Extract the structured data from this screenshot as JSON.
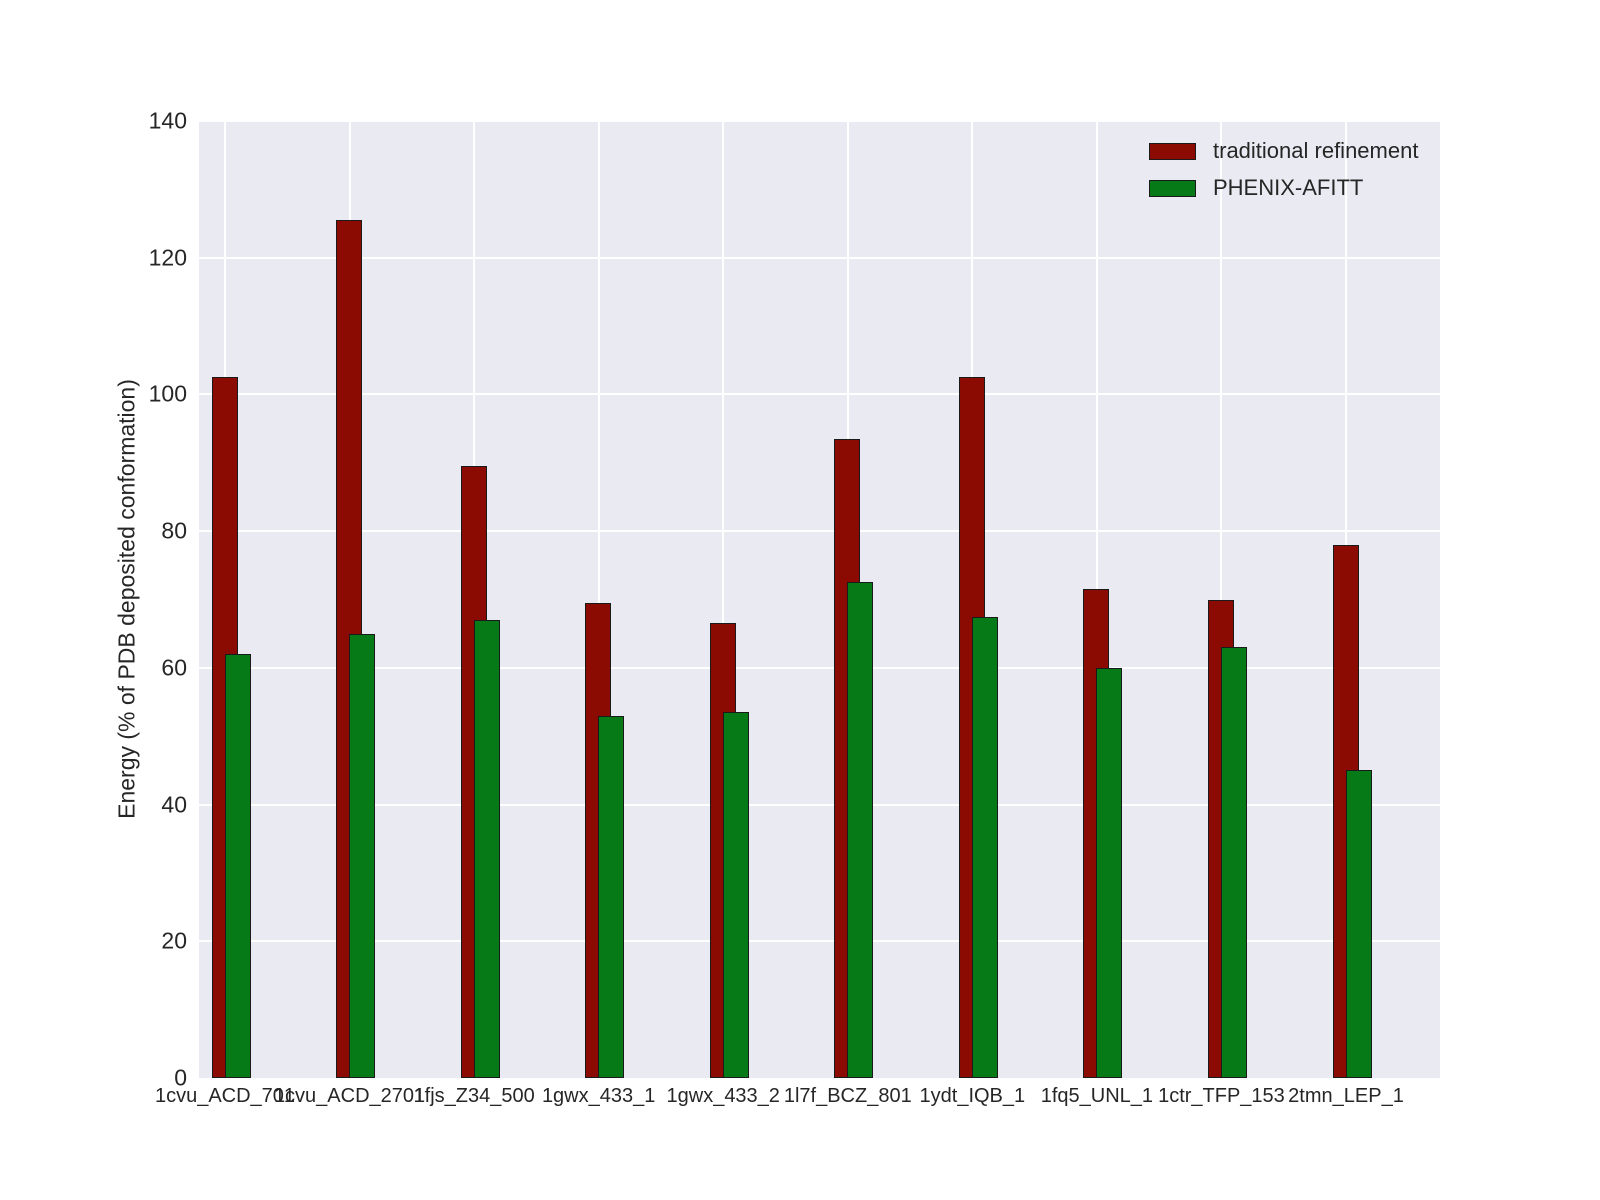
{
  "chart_data": {
    "type": "bar",
    "title": "",
    "xlabel": "",
    "ylabel": "Energy (% of PDB deposited conformation)",
    "ylim": [
      0,
      140
    ],
    "y_ticks": [
      0,
      20,
      40,
      60,
      80,
      100,
      120,
      140
    ],
    "y_tick_labels": [
      "0",
      "20",
      "40",
      "60",
      "80",
      "100",
      "120",
      "140"
    ],
    "categories": [
      "1cvu_ACD_701",
      "1cvu_ACD_2701",
      "1fjs_Z34_500",
      "1gwx_433_1",
      "1gwx_433_2",
      "1l7f_BCZ_801",
      "1ydt_IQB_1",
      "1fq5_UNL_1",
      "1ctr_TFP_153",
      "2tmn_LEP_1"
    ],
    "series": [
      {
        "name": "traditional refinement",
        "color": "#8b0a02",
        "values": [
          102.5,
          125.5,
          89.5,
          69.5,
          66.5,
          93.5,
          102.5,
          71.5,
          70,
          78
        ]
      },
      {
        "name": "PHENIX-AFITT",
        "color": "#077a18",
        "values": [
          62,
          65,
          67,
          53,
          53.5,
          72.5,
          67.5,
          60,
          63,
          45
        ]
      }
    ],
    "legend_position": "upper right",
    "grid": true,
    "plot_background": "#eaeaf2",
    "grid_color": "#ffffff",
    "bar_edge_color": "#1a1a1a",
    "text_color": "#262626"
  }
}
